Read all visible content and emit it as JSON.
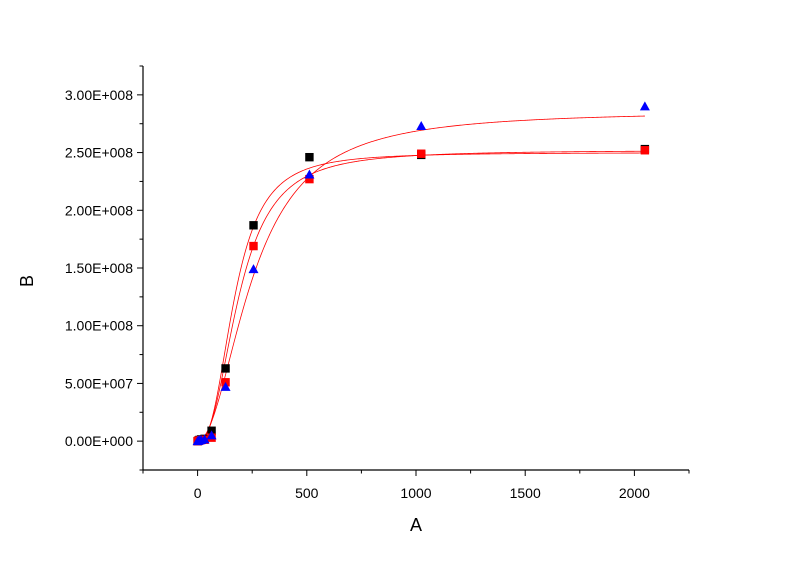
{
  "chart_data": {
    "type": "scatter",
    "xlabel": "A",
    "ylabel": "B",
    "xlim": [
      -250,
      2250
    ],
    "ylim": [
      -25000000,
      325000000
    ],
    "xticks": [
      0,
      500,
      1000,
      1500,
      2000
    ],
    "xtick_labels": [
      "0",
      "500",
      "1000",
      "1500",
      "2000"
    ],
    "yticks": [
      0,
      50000000,
      100000000,
      150000000,
      200000000,
      250000000,
      300000000
    ],
    "ytick_labels": [
      "0.00E+000",
      "5.00E+007",
      "1.00E+008",
      "1.50E+008",
      "2.00E+008",
      "2.50E+008",
      "3.00E+008"
    ],
    "grid": false,
    "legend": "none",
    "fit_color": "#ff0000",
    "series": [
      {
        "marker": "square",
        "color": "#000000",
        "x": [
          0,
          4,
          8,
          16,
          32,
          64,
          128,
          256,
          512,
          1024,
          2048
        ],
        "y": [
          0,
          500000,
          1000000,
          1500000,
          2000000,
          9000000,
          63000000,
          187000000,
          246000000,
          248000000,
          253000000
        ],
        "fit": {
          "plateau": 250000000,
          "ec50": 170,
          "hill": 2.6
        }
      },
      {
        "marker": "square",
        "color": "#ff0000",
        "x": [
          0,
          4,
          8,
          16,
          32,
          64,
          128,
          256,
          512,
          1024,
          2048
        ],
        "y": [
          0,
          300000,
          600000,
          900000,
          1200000,
          3000000,
          51000000,
          169000000,
          227000000,
          249000000,
          252000000
        ],
        "fit": {
          "plateau": 252000000,
          "ec50": 190,
          "hill": 2.4
        }
      },
      {
        "marker": "triangle",
        "color": "#0000ff",
        "x": [
          0,
          4,
          8,
          16,
          32,
          64,
          128,
          256,
          512,
          1024,
          2048
        ],
        "y": [
          0,
          300000,
          800000,
          1000000,
          1500000,
          5000000,
          47000000,
          149000000,
          231000000,
          273000000,
          290000000
        ],
        "fit": {
          "plateau": 286000000,
          "ec50": 255,
          "hill": 2.0
        }
      }
    ]
  }
}
